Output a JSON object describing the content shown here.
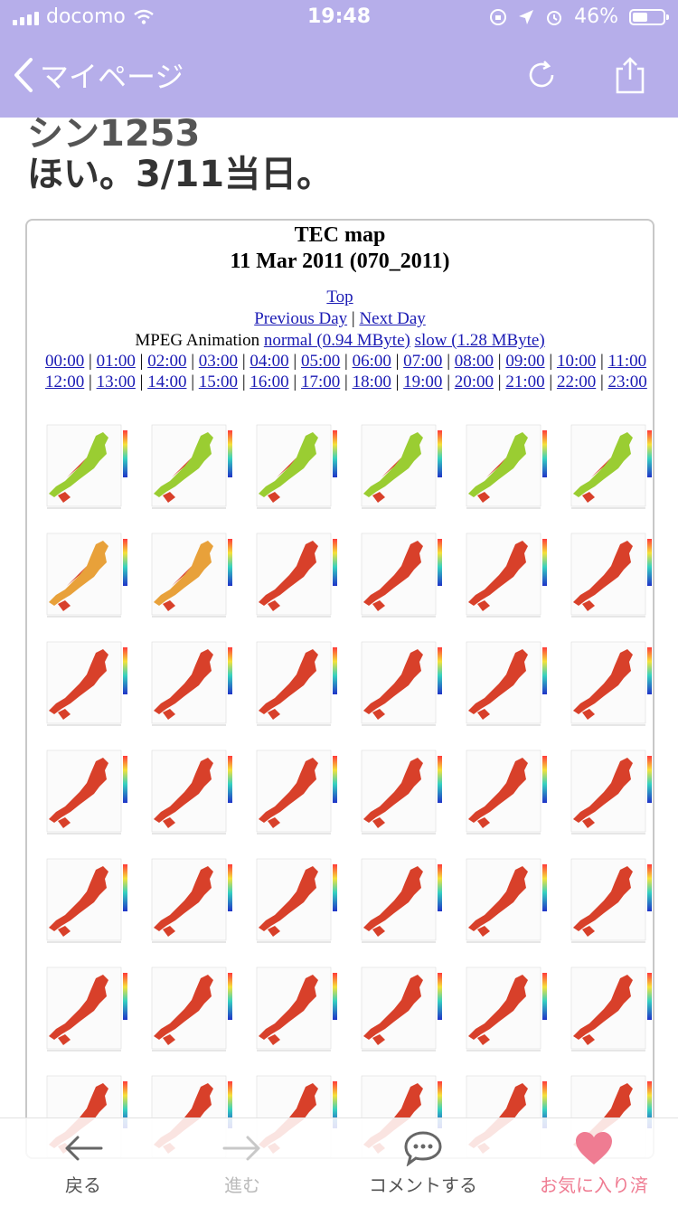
{
  "status_bar": {
    "carrier": "docomo",
    "time": "19:48",
    "battery": "46%"
  },
  "nav": {
    "back_label": "マイページ",
    "icons": [
      "reload-icon",
      "share-icon"
    ]
  },
  "post": {
    "clipped_heading": "シン1253",
    "title": "ほい。3/11当日。"
  },
  "tec_page": {
    "title": "TEC map",
    "date": "11 Mar 2011 (070_2011)",
    "top_link": "Top",
    "prev_link": "Previous Day",
    "separator": "|",
    "next_link": "Next Day",
    "mpeg_label": "MPEG Animation",
    "mpeg_normal": "normal (0.94 MByte)",
    "mpeg_slow": "slow (1.28 MByte)",
    "hours": [
      "00:00",
      "01:00",
      "02:00",
      "03:00",
      "04:00",
      "05:00",
      "06:00",
      "07:00",
      "08:00",
      "09:00",
      "10:00",
      "11:00",
      "12:00",
      "13:00",
      "14:00",
      "15:00",
      "16:00",
      "17:00",
      "18:00",
      "19:00",
      "20:00",
      "21:00",
      "22:00",
      "23:00"
    ]
  },
  "bottom_bar": {
    "back": "戻る",
    "forward": "進む",
    "comment": "コメントする",
    "favorite": "お気に入り済",
    "favorite_color": "#ef7c92"
  }
}
